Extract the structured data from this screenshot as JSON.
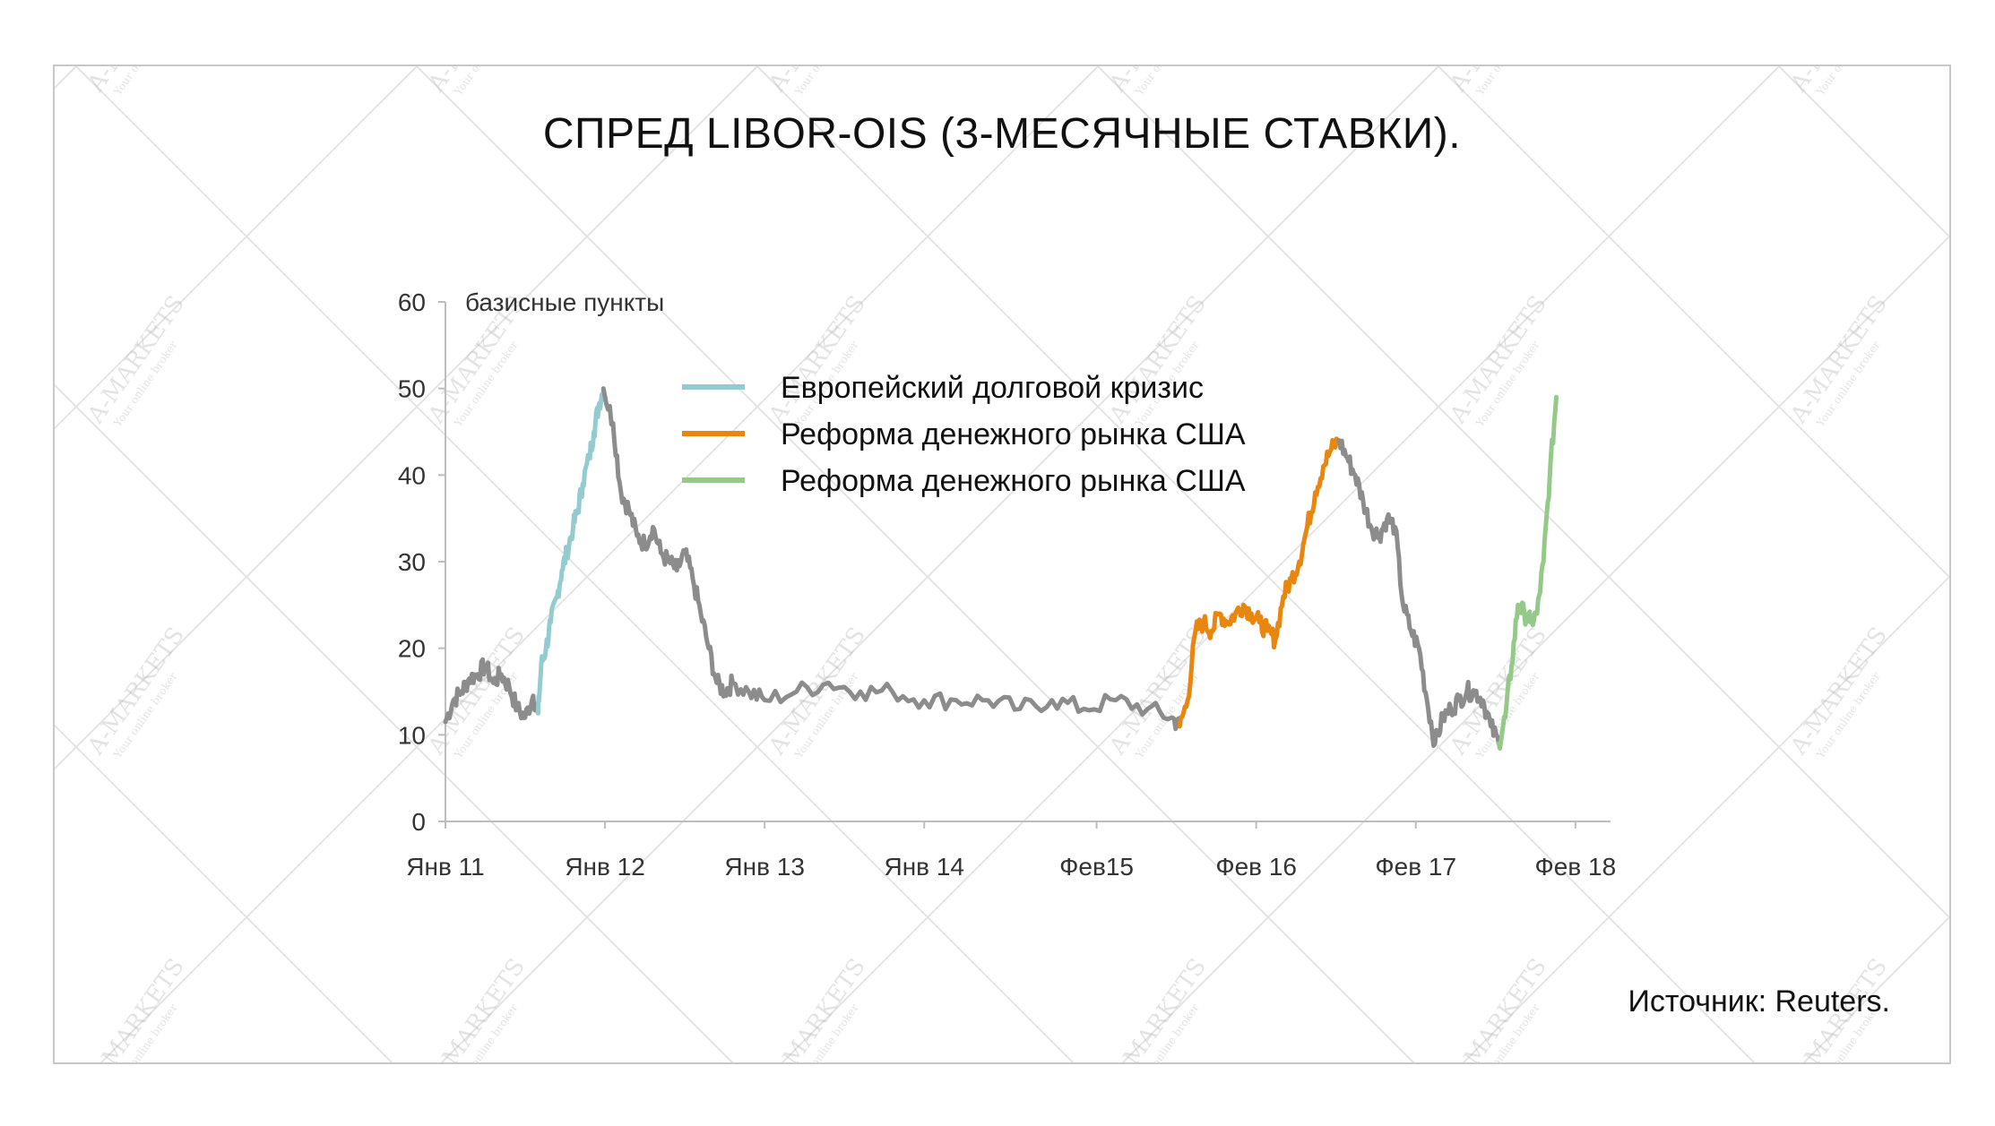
{
  "chart_data": {
    "type": "line",
    "title": "СПРЕД LIBOR-OIS (3-МЕСЯЧНЫЕ СТАВКИ).",
    "ylabel": "базисные пункты",
    "ylim": [
      0,
      60
    ],
    "yticks": [
      0,
      10,
      20,
      30,
      40,
      50,
      60
    ],
    "xlim": [
      2011.0,
      2018.3
    ],
    "xticks": [
      {
        "label": "Янв 11",
        "x": 2011.0
      },
      {
        "label": "Янв 12",
        "x": 2012.0
      },
      {
        "label": "Янв 13",
        "x": 2013.0
      },
      {
        "label": "Янв 14",
        "x": 2014.0
      },
      {
        "label": "Фев15",
        "x": 2015.08
      },
      {
        "label": "Фев 16",
        "x": 2016.08
      },
      {
        "label": "Фев 17",
        "x": 2017.08
      },
      {
        "label": "Фев 18",
        "x": 2018.08
      }
    ],
    "grid": false,
    "legend_position": "top-center",
    "series": [
      {
        "name": "",
        "color": "#8c8c8c",
        "x": [
          2011.0,
          2011.05,
          2011.1,
          2011.15,
          2011.2,
          2011.25,
          2011.3,
          2011.35,
          2011.4,
          2011.45,
          2011.5,
          2011.55,
          2011.58
        ],
        "y": [
          11.5,
          14,
          15,
          16.5,
          17,
          18,
          16,
          17,
          15.5,
          13,
          12,
          14.5,
          12.5
        ]
      },
      {
        "name": "Европейский долговой кризис",
        "color": "#93cbd0",
        "x": [
          2011.58,
          2011.6,
          2011.63,
          2011.66,
          2011.7,
          2011.73,
          2011.76,
          2011.8,
          2011.83,
          2011.86,
          2011.9,
          2011.93,
          2011.96,
          2011.99
        ],
        "y": [
          12.5,
          18,
          20,
          23,
          26,
          29,
          31,
          34,
          36,
          39,
          42,
          45,
          48,
          50
        ]
      },
      {
        "name": "",
        "color": "#8c8c8c",
        "x": [
          2011.99,
          2012.05,
          2012.1,
          2012.15,
          2012.2,
          2012.25,
          2012.3,
          2012.35,
          2012.4,
          2012.45,
          2012.5,
          2012.55,
          2012.6,
          2012.65,
          2012.7,
          2012.75,
          2012.8,
          2012.9,
          2013.0,
          2013.2,
          2013.4,
          2013.6,
          2013.8,
          2014.0,
          2014.2,
          2014.4,
          2014.6,
          2014.8,
          2015.0,
          2015.2,
          2015.4,
          2015.55,
          2015.6
        ],
        "y": [
          50,
          46,
          38,
          36,
          33,
          32,
          34,
          31,
          30,
          29,
          31,
          28,
          24,
          20,
          16,
          15,
          16,
          15,
          14,
          15,
          16,
          15,
          15,
          14,
          14,
          14,
          13,
          14,
          13,
          14,
          13,
          12,
          11
        ]
      },
      {
        "name": "Реформа денежного рынка США",
        "color": "#e8860e",
        "x": [
          2015.6,
          2015.65,
          2015.7,
          2015.75,
          2015.8,
          2015.85,
          2015.9,
          2015.95,
          2016.0,
          2016.05,
          2016.1,
          2016.15,
          2016.2,
          2016.25,
          2016.3,
          2016.35,
          2016.4,
          2016.45,
          2016.5,
          2016.55,
          2016.6
        ],
        "y": [
          11,
          14,
          22,
          23,
          22,
          24,
          23,
          24,
          25,
          24,
          23,
          22,
          21,
          26,
          28,
          30,
          34,
          38,
          41,
          43,
          44
        ]
      },
      {
        "name": "",
        "color": "#8c8c8c",
        "x": [
          2016.6,
          2016.65,
          2016.7,
          2016.75,
          2016.8,
          2016.85,
          2016.9,
          2016.95,
          2017.0,
          2017.05,
          2017.1,
          2017.15,
          2017.2,
          2017.25,
          2017.3,
          2017.35,
          2017.4,
          2017.45,
          2017.5,
          2017.55,
          2017.6
        ],
        "y": [
          44,
          42,
          40,
          37,
          34,
          33,
          35,
          34,
          25,
          22,
          20,
          14,
          9,
          12,
          13,
          14,
          15,
          15,
          14,
          11,
          9
        ]
      },
      {
        "name": "Реформа денежного рынка США",
        "color": "#94c98a",
        "x": [
          2017.6,
          2017.64,
          2017.68,
          2017.72,
          2017.76,
          2017.8,
          2017.84,
          2017.88,
          2017.92,
          2017.96
        ],
        "y": [
          9,
          12,
          18,
          25,
          24,
          23,
          24,
          30,
          40,
          49
        ]
      }
    ]
  },
  "source_note": "Источник: Reuters.",
  "watermark": {
    "brand": "A-MARKETS",
    "tagline": "Your online broker"
  }
}
